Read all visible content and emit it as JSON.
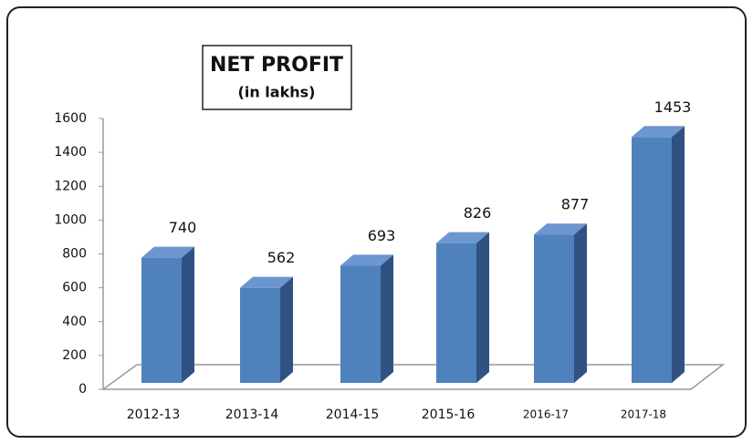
{
  "chart_data": {
    "type": "bar3d",
    "title": "NET PROFIT",
    "subtitle": "(in lakhs)",
    "categories": [
      "2012-13",
      "2013-14",
      "2014-15",
      "2015-16",
      "2016-17",
      "2017-18"
    ],
    "values": [
      740,
      562,
      693,
      826,
      877,
      1453
    ],
    "color": "#4f81bd",
    "ylim": [
      0,
      1600
    ],
    "yticks": [
      0,
      200,
      400,
      600,
      800,
      1000,
      1200,
      1400,
      1600
    ]
  }
}
